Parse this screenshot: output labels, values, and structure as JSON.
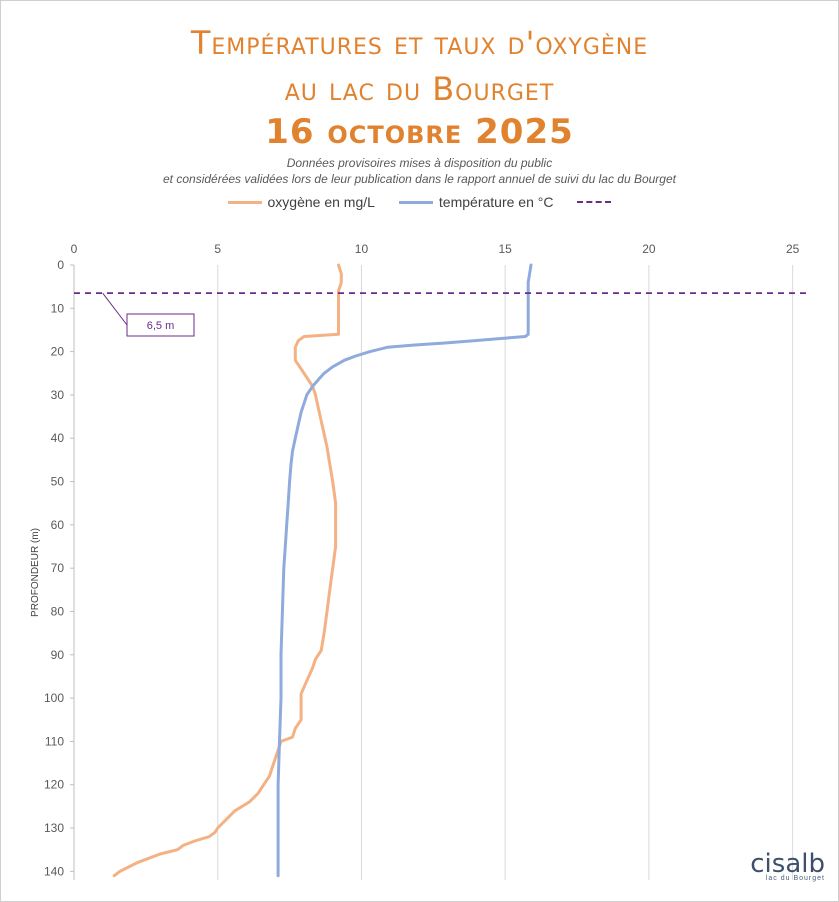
{
  "header": {
    "title_line1": "Températures et taux d'oxygène",
    "title_line2": "au lac du Bourget",
    "title_line3": "16 octobre 2025",
    "subtitle_line1": "Données provisoires mises à disposition du public",
    "subtitle_line2": "et considérées validées lors de leur publication dans le rapport annuel de suivi du lac du Bourget"
  },
  "logo": {
    "name": "cisalb",
    "tagline": "lac du Bourget"
  },
  "colors": {
    "oxygen": "#f4b183",
    "temperature": "#8faadc",
    "thermocline": "#6a2c8a",
    "title": "#e0822e"
  },
  "chart_data": {
    "type": "line",
    "ylabel": "PROFONDEUR (m)",
    "x_ticks": [
      0,
      5,
      10,
      15,
      20,
      25
    ],
    "y_ticks": [
      0,
      10,
      20,
      30,
      40,
      50,
      60,
      70,
      80,
      90,
      100,
      110,
      120,
      130,
      140
    ],
    "xlim": [
      0,
      25.5
    ],
    "ylim": [
      0,
      142
    ],
    "y_inverted": true,
    "x_axis_position": "top",
    "grid": "vertical",
    "legend": "top-center",
    "series": [
      {
        "name": "oxygène en mg/L",
        "color": "#f4b183",
        "points": [
          [
            9.2,
            0
          ],
          [
            9.3,
            2
          ],
          [
            9.3,
            4
          ],
          [
            9.2,
            6
          ],
          [
            9.2,
            8
          ],
          [
            9.2,
            12
          ],
          [
            9.2,
            16
          ],
          [
            8.0,
            16.5
          ],
          [
            7.8,
            17.5
          ],
          [
            7.7,
            19
          ],
          [
            7.7,
            22
          ],
          [
            7.9,
            24
          ],
          [
            8.1,
            26
          ],
          [
            8.3,
            28
          ],
          [
            8.4,
            30
          ],
          [
            8.5,
            33
          ],
          [
            8.6,
            36
          ],
          [
            8.7,
            39
          ],
          [
            8.8,
            42
          ],
          [
            8.9,
            46
          ],
          [
            9.0,
            50
          ],
          [
            9.1,
            55
          ],
          [
            9.1,
            60
          ],
          [
            9.1,
            65
          ],
          [
            9.0,
            70
          ],
          [
            8.9,
            75
          ],
          [
            8.8,
            80
          ],
          [
            8.7,
            85
          ],
          [
            8.6,
            89
          ],
          [
            8.4,
            91
          ],
          [
            8.3,
            93
          ],
          [
            8.1,
            96
          ],
          [
            7.9,
            99
          ],
          [
            7.9,
            102
          ],
          [
            7.9,
            105
          ],
          [
            7.7,
            107
          ],
          [
            7.6,
            109
          ],
          [
            7.2,
            110
          ],
          [
            7.1,
            112
          ],
          [
            7.0,
            114
          ],
          [
            6.9,
            116
          ],
          [
            6.8,
            118
          ],
          [
            6.6,
            120
          ],
          [
            6.4,
            122
          ],
          [
            6.1,
            124
          ],
          [
            5.6,
            126
          ],
          [
            5.3,
            128
          ],
          [
            5.0,
            130
          ],
          [
            4.9,
            131
          ],
          [
            4.7,
            132
          ],
          [
            4.2,
            133
          ],
          [
            3.8,
            134
          ],
          [
            3.6,
            135
          ],
          [
            3.0,
            136
          ],
          [
            2.6,
            137
          ],
          [
            2.2,
            138
          ],
          [
            1.9,
            139
          ],
          [
            1.6,
            140
          ],
          [
            1.4,
            141
          ]
        ]
      },
      {
        "name": "température en °C",
        "color": "#8faadc",
        "points": [
          [
            15.9,
            0
          ],
          [
            15.85,
            2
          ],
          [
            15.8,
            4
          ],
          [
            15.8,
            8
          ],
          [
            15.8,
            12
          ],
          [
            15.8,
            16
          ],
          [
            15.7,
            16.5
          ],
          [
            14.8,
            17
          ],
          [
            13.9,
            17.5
          ],
          [
            12.9,
            18
          ],
          [
            11.8,
            18.5
          ],
          [
            10.9,
            19
          ],
          [
            10.3,
            20
          ],
          [
            9.8,
            21
          ],
          [
            9.4,
            22
          ],
          [
            9.0,
            23.5
          ],
          [
            8.7,
            25
          ],
          [
            8.5,
            26.5
          ],
          [
            8.3,
            28
          ],
          [
            8.1,
            30
          ],
          [
            8.0,
            32
          ],
          [
            7.9,
            34
          ],
          [
            7.8,
            37
          ],
          [
            7.7,
            40
          ],
          [
            7.6,
            43
          ],
          [
            7.55,
            46
          ],
          [
            7.5,
            50
          ],
          [
            7.45,
            55
          ],
          [
            7.4,
            60
          ],
          [
            7.35,
            65
          ],
          [
            7.3,
            70
          ],
          [
            7.25,
            80
          ],
          [
            7.2,
            90
          ],
          [
            7.2,
            100
          ],
          [
            7.15,
            110
          ],
          [
            7.1,
            120
          ],
          [
            7.1,
            130
          ],
          [
            7.1,
            141
          ]
        ]
      }
    ],
    "reference_line": {
      "name": "",
      "y": 6.5,
      "label": "6,5 m",
      "color": "#6a2c8a"
    }
  }
}
